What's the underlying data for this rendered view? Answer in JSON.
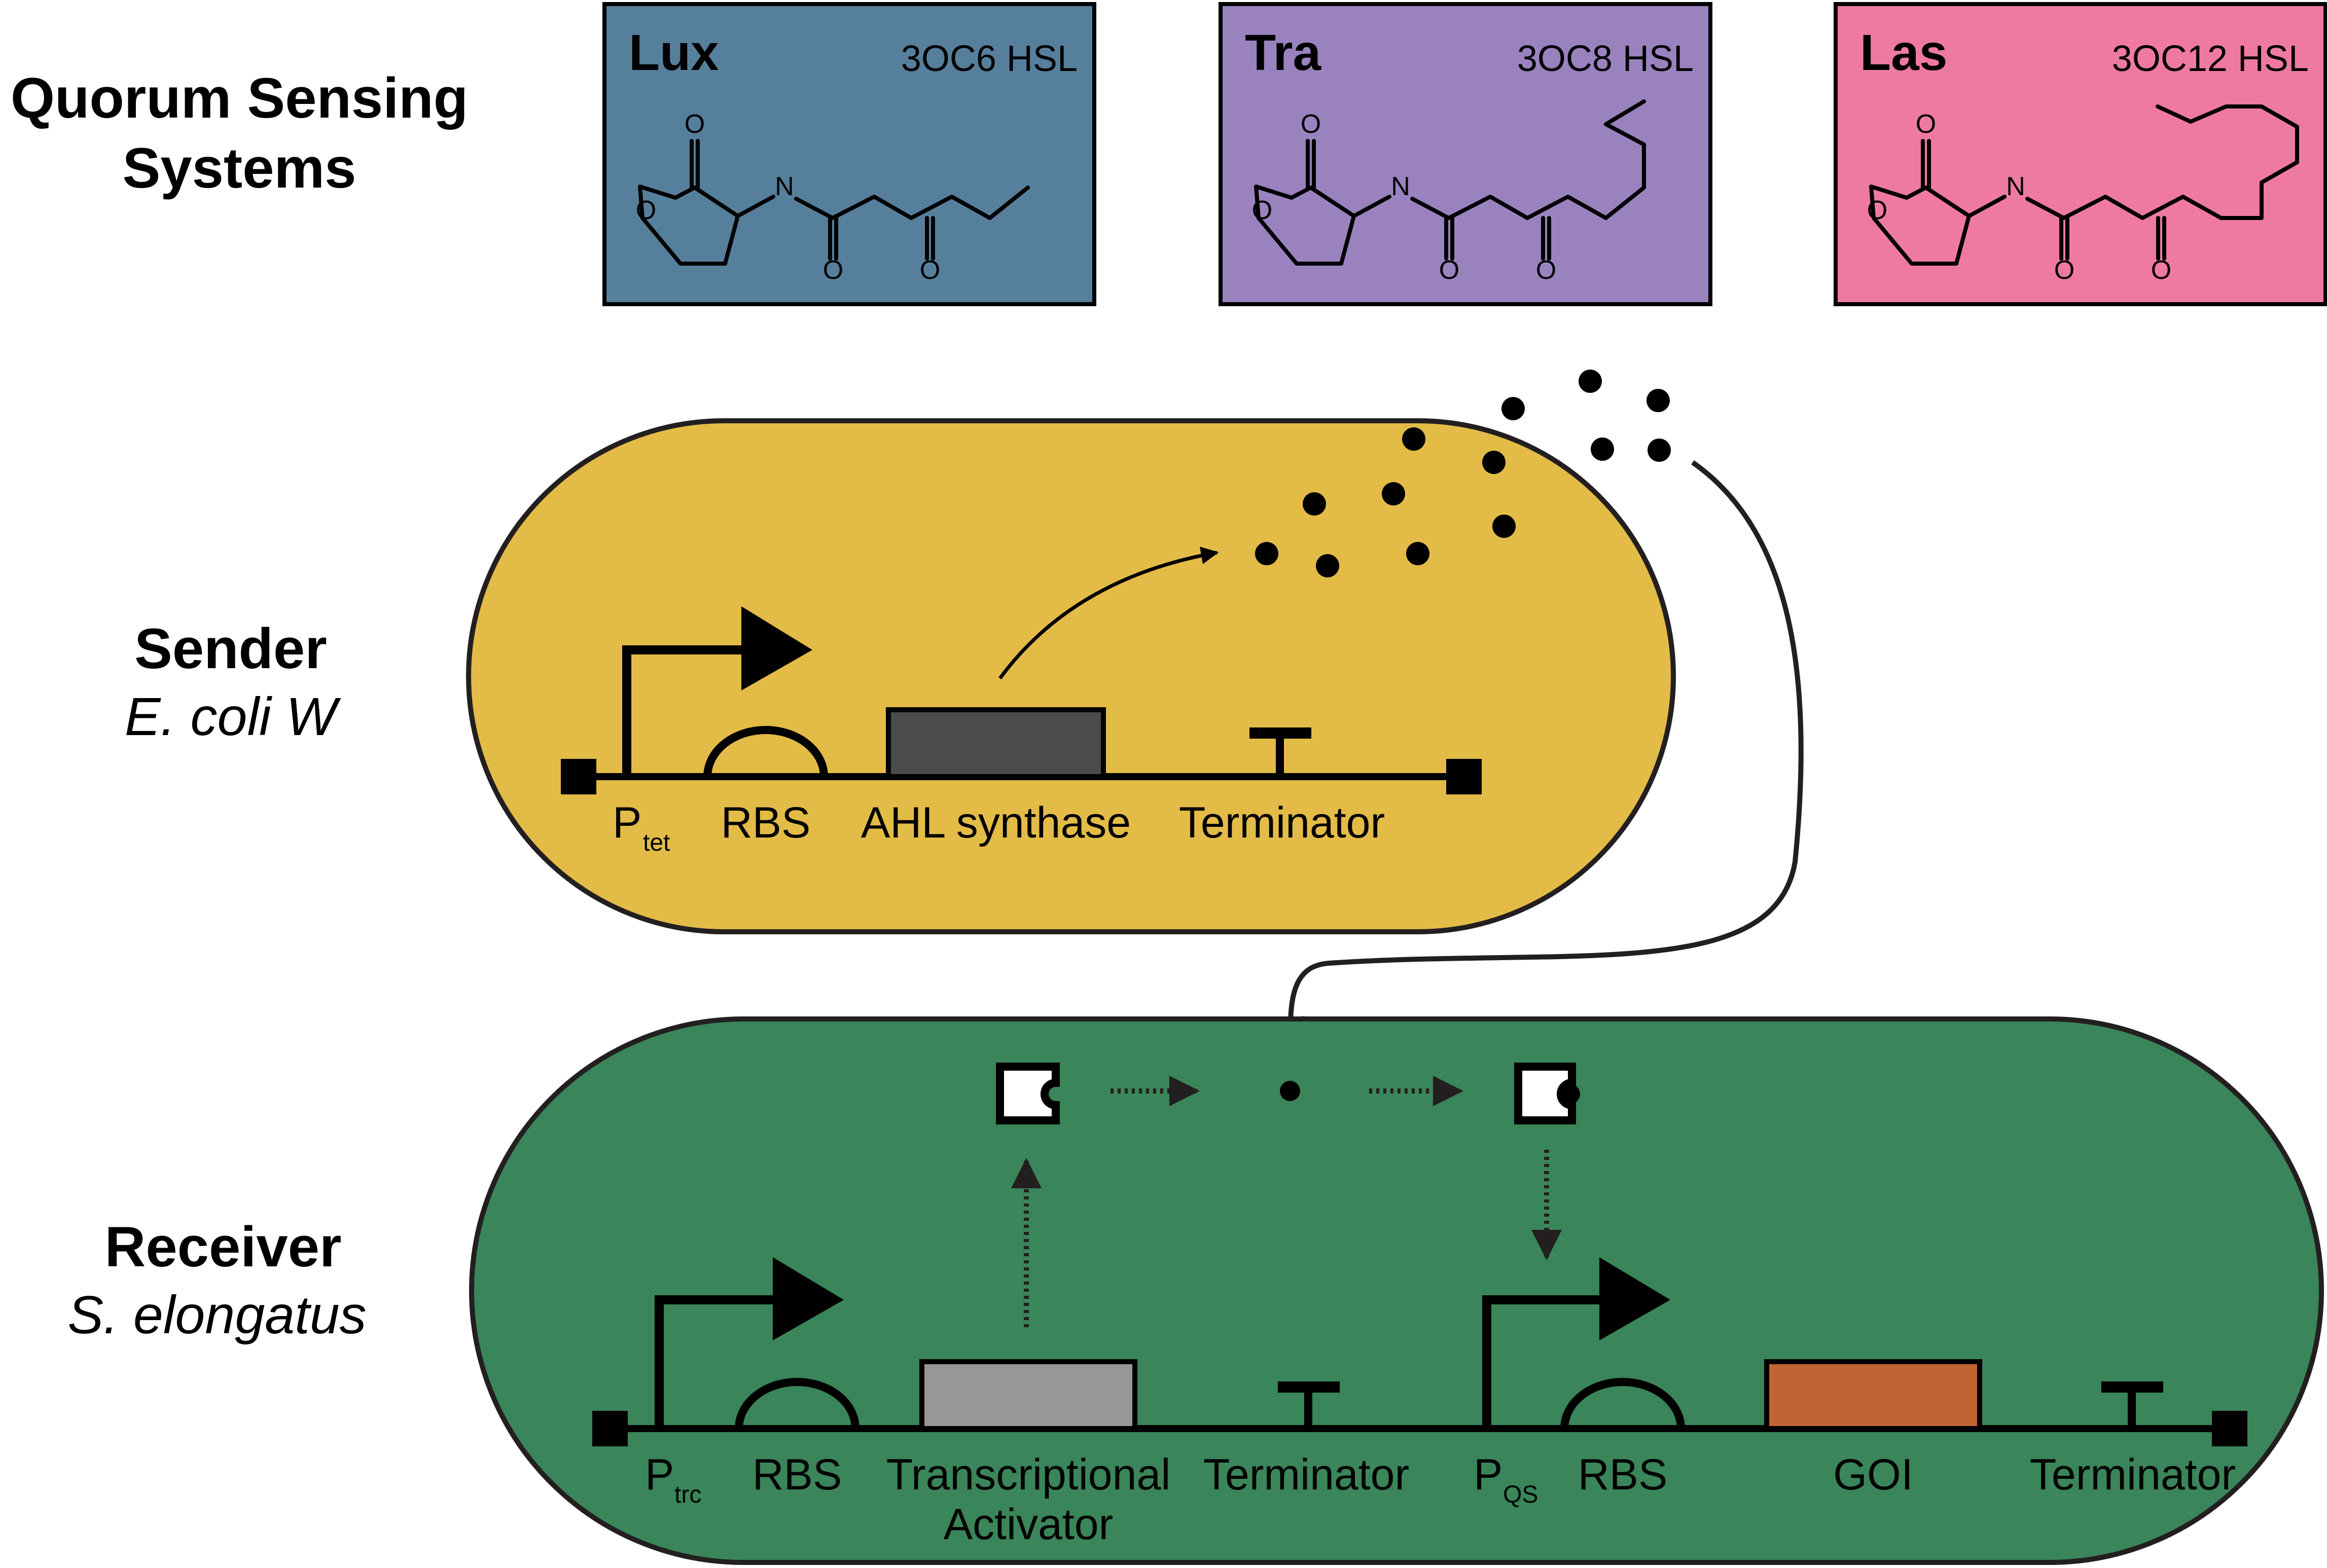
{
  "title": {
    "line1": "Quorum Sensing",
    "line2": "Systems"
  },
  "qs_systems": [
    {
      "name": "Lux",
      "molecule": "3OC6 HSL",
      "color": "#567f9c"
    },
    {
      "name": "Tra",
      "molecule": "3OC8 HSL",
      "color": "#9a82bf"
    },
    {
      "name": "Las",
      "molecule": "3OC12 HSL",
      "color": "#ef7aa0"
    }
  ],
  "atoms": {
    "oxygen": "O",
    "nitrogen": "N"
  },
  "sender": {
    "label": "Sender",
    "organism": "E. coli W",
    "fill": "#e3bb47",
    "parts": {
      "promoter": "P",
      "promoter_sub": "tet",
      "rbs": "RBS",
      "gene": "AHL synthase",
      "terminator": "Terminator"
    },
    "gene_color": "#4d4c4c"
  },
  "receiver": {
    "label": "Receiver",
    "organism": "S. elongatus",
    "fill": "#3a8559",
    "parts": {
      "promoter1": "P",
      "promoter1_sub": "trc",
      "rbs1": "RBS",
      "gene1_line1": "Transcriptional",
      "gene1_line2": "Activator",
      "terminator1": "Terminator",
      "promoter2": "P",
      "promoter2_sub": "QS",
      "rbs2": "RBS",
      "gene2": "GOI",
      "terminator2": "Terminator"
    },
    "gene1_color": "#979797",
    "gene2_color": "#c26334"
  }
}
